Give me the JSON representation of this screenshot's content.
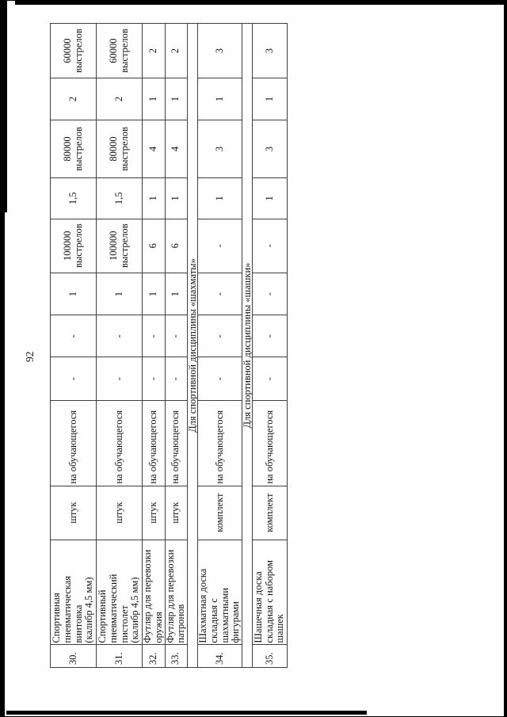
{
  "page": {
    "number": "92"
  },
  "colors": {
    "ink": "#151515",
    "grid": "#3f3f3f",
    "artifact": "#000000",
    "paper": "#fefefe"
  },
  "table": {
    "rows": [
      {
        "kind": "item",
        "num": "30.",
        "name": "Спортивная\nпневматическая\nвинтовка\n(калибр 4,5 мм)",
        "unit": "штук",
        "norm": "на обучающегося",
        "values": [
          "-",
          "-",
          "1",
          "100000\nвыстрелов",
          "1,5",
          "80000\nвыстрелов",
          "2",
          "60000\nвыстрелов"
        ]
      },
      {
        "kind": "item",
        "num": "31.",
        "name": "Спортивный\nпневматический\nпистолет\n(калибр 4,5 мм)",
        "unit": "штук",
        "norm": "на обучающегося",
        "values": [
          "-",
          "-",
          "1",
          "100000\nвыстрелов",
          "1,5",
          "80000\nвыстрелов",
          "2",
          "60000\nвыстрелов"
        ]
      },
      {
        "kind": "item",
        "num": "32.",
        "name": "Футляр для перевозки\nоружия",
        "unit": "штук",
        "norm": "на обучающегося",
        "values": [
          "-",
          "-",
          "1",
          "6",
          "1",
          "4",
          "1",
          "2"
        ]
      },
      {
        "kind": "item",
        "num": "33.",
        "name": "Футляр для перевозки\nпатронов",
        "unit": "штук",
        "norm": "на обучающегося",
        "values": [
          "-",
          "-",
          "1",
          "6",
          "1",
          "4",
          "1",
          "2"
        ]
      },
      {
        "kind": "section",
        "label": "Для спортивной дисциплины «шахматы»"
      },
      {
        "kind": "item",
        "num": "34.",
        "name": "Шахматная доска\nскладная с шахматными\nфигурами",
        "unit": "комплект",
        "norm": "на обучающегося",
        "values": [
          "-",
          "-",
          "-",
          "-",
          "1",
          "3",
          "1",
          "3"
        ]
      },
      {
        "kind": "section",
        "label": "Для спортивной дисциплины «шашки»"
      },
      {
        "kind": "item",
        "num": "35.",
        "name": "Шашечная доска\nскладная с набором\nшашек",
        "unit": "комплект",
        "norm": "на обучающегося",
        "values": [
          "-",
          "-",
          "-",
          "-",
          "1",
          "3",
          "1",
          "3"
        ]
      }
    ]
  }
}
